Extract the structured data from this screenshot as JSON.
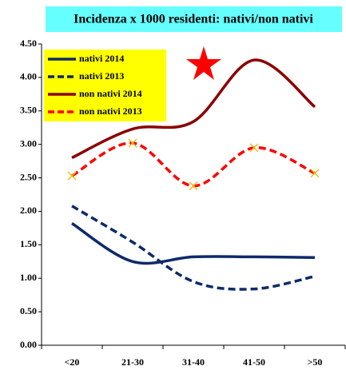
{
  "chart_data": {
    "type": "line",
    "title": "Incidenza x 1000 residenti: nativi/non nativi",
    "categories": [
      "<20",
      "21-30",
      "31-40",
      "41-50",
      ">50"
    ],
    "series": [
      {
        "name": "nativi 2014",
        "color": "#0d2a6b",
        "dashed": false,
        "values": [
          1.82,
          1.25,
          1.32,
          1.32,
          1.31
        ]
      },
      {
        "name": "nativi 2013",
        "color": "#0d2a6b",
        "dashed": true,
        "values": [
          2.08,
          1.54,
          0.95,
          0.84,
          1.03
        ]
      },
      {
        "name": "non nativi 2014",
        "color": "#8b0000",
        "dashed": false,
        "values": [
          2.8,
          3.23,
          3.34,
          4.26,
          3.56
        ]
      },
      {
        "name": "non nativi 2013",
        "color": "#ff0000",
        "dashed": true,
        "marker": "x",
        "values": [
          2.53,
          3.02,
          2.38,
          2.95,
          2.57
        ]
      }
    ],
    "ylim": [
      0,
      4.5
    ],
    "yticks": [
      {
        "value": 0,
        "label": "0.00"
      },
      {
        "value": 0.5,
        "label": "0.50"
      },
      {
        "value": 1,
        "label": "1.00"
      },
      {
        "value": 1.5,
        "label": "1.50"
      },
      {
        "value": 2,
        "label": "2.00"
      },
      {
        "value": 2.5,
        "label": "2.50"
      },
      {
        "value": 3,
        "label": "3.00"
      },
      {
        "value": 3.5,
        "label": "3.50"
      },
      {
        "value": 4,
        "label": "4.00"
      },
      {
        "value": 4.5,
        "label": "4.50"
      }
    ],
    "legend": "upper left"
  }
}
